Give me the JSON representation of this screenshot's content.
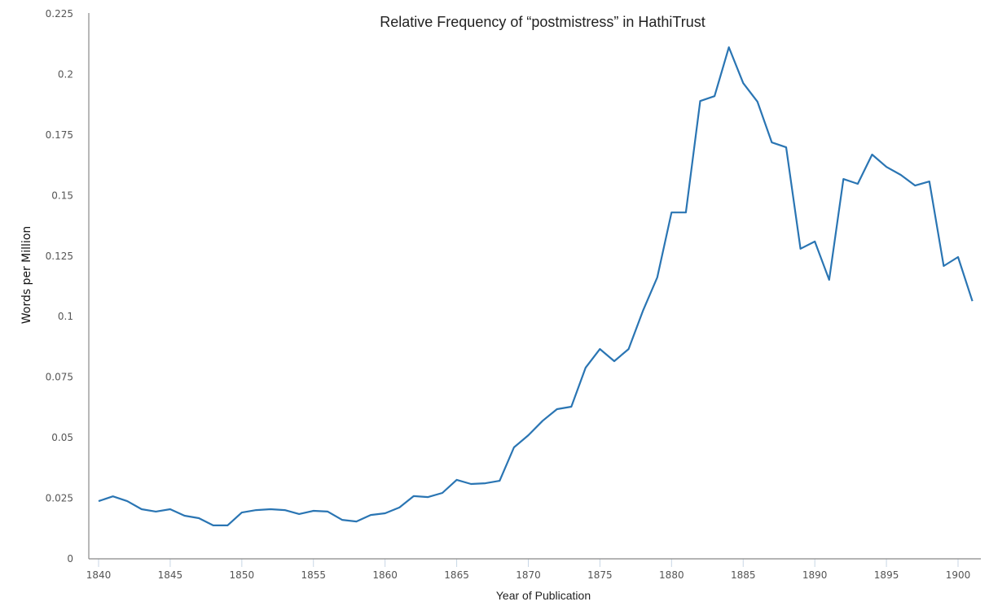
{
  "chart_data": {
    "type": "line",
    "title": "Relative Frequency of “postmistress” in HathiTrust",
    "xlabel": "Year of Publication",
    "ylabel": "Words per Million",
    "xlim": [
      1840,
      1901
    ],
    "ylim": [
      0,
      0.225
    ],
    "x_ticks": [
      "1840",
      "1845",
      "1850",
      "1855",
      "1860",
      "1865",
      "1870",
      "1875",
      "1880",
      "1885",
      "1890",
      "1895",
      "1900"
    ],
    "y_ticks": [
      "0",
      "0.025",
      "0.05",
      "0.075",
      "0.1",
      "0.125",
      "0.15",
      "0.175",
      "0.2",
      "0.225"
    ],
    "grid": false,
    "legend": null,
    "line_color": "#2a75b3",
    "series": [
      {
        "name": "postmistress",
        "x": [
          1840,
          1841,
          1842,
          1843,
          1844,
          1845,
          1846,
          1847,
          1848,
          1849,
          1850,
          1851,
          1852,
          1853,
          1854,
          1855,
          1856,
          1857,
          1858,
          1859,
          1860,
          1861,
          1862,
          1863,
          1864,
          1865,
          1866,
          1867,
          1868,
          1869,
          1870,
          1871,
          1872,
          1873,
          1874,
          1875,
          1876,
          1877,
          1878,
          1879,
          1880,
          1881,
          1882,
          1883,
          1884,
          1885,
          1886,
          1887,
          1888,
          1889,
          1890,
          1891,
          1892,
          1893,
          1894,
          1895,
          1896,
          1897,
          1898,
          1899,
          1900,
          1901
        ],
        "values": [
          0.0238,
          0.0258,
          0.0238,
          0.0205,
          0.0195,
          0.0205,
          0.0178,
          0.0168,
          0.0138,
          0.0138,
          0.0191,
          0.0201,
          0.0205,
          0.0201,
          0.0185,
          0.0198,
          0.0195,
          0.0161,
          0.0154,
          0.0181,
          0.0188,
          0.0212,
          0.0259,
          0.0255,
          0.0272,
          0.0326,
          0.0309,
          0.0312,
          0.0322,
          0.046,
          0.051,
          0.057,
          0.0618,
          0.0628,
          0.0789,
          0.0866,
          0.0816,
          0.0866,
          0.1024,
          0.1162,
          0.143,
          0.143,
          0.189,
          0.191,
          0.2112,
          0.1964,
          0.1887,
          0.1719,
          0.1699,
          0.128,
          0.131,
          0.1152,
          0.1568,
          0.1548,
          0.1669,
          0.1618,
          0.1585,
          0.1541,
          0.1558,
          0.1209,
          0.1246,
          0.1064
        ]
      }
    ]
  }
}
